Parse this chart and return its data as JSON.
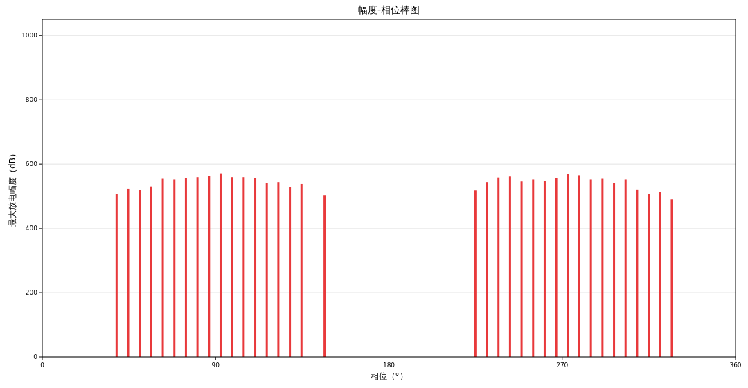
{
  "chart_data": {
    "type": "bar",
    "title": "幅度-相位棒图",
    "xlabel": "相位（°）",
    "ylabel": "最大放电幅度（dB）",
    "x": [
      38.6,
      44.6,
      50.6,
      56.6,
      62.6,
      68.6,
      74.6,
      80.6,
      86.6,
      92.6,
      98.6,
      104.6,
      110.6,
      116.6,
      122.6,
      128.6,
      134.6,
      146.6,
      224.9,
      230.9,
      236.9,
      242.9,
      248.9,
      254.9,
      260.9,
      266.9,
      272.9,
      278.9,
      284.9,
      290.9,
      296.9,
      302.9,
      308.9,
      314.9,
      320.9,
      326.9
    ],
    "values": [
      507,
      523,
      520,
      530,
      554,
      552,
      557,
      559,
      563,
      571,
      559,
      559,
      556,
      542,
      544,
      529,
      538,
      503,
      518,
      544,
      558,
      561,
      546,
      552,
      548,
      557,
      569,
      565,
      552,
      554,
      542,
      552,
      521,
      506,
      513,
      490
    ],
    "color": "#e8393b",
    "xlim": [
      0,
      360
    ],
    "xticks": [
      0,
      90,
      180,
      270,
      360
    ],
    "ylim": [
      0,
      1050
    ],
    "yticks": [
      0,
      200,
      400,
      600,
      800,
      1000
    ],
    "grid": "y"
  }
}
